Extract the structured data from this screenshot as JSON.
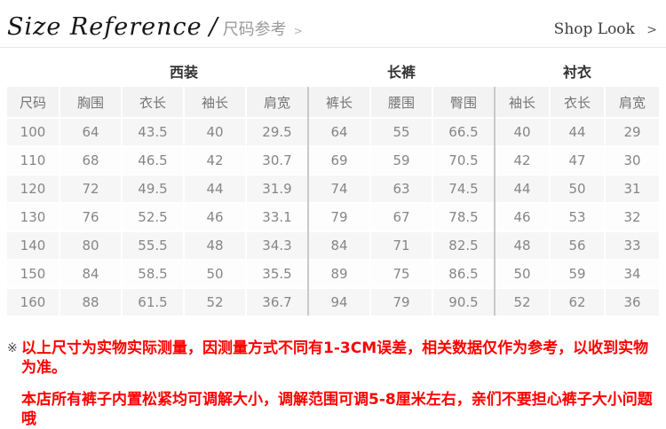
{
  "header": {
    "title_en": "Size Reference",
    "title_slash": "/",
    "title_cn": "尺码参考",
    "title_chevron": ">",
    "shop_look_label": "Shop Look",
    "shop_look_chevron": ">"
  },
  "size_table": {
    "groups": [
      {
        "label": "西装"
      },
      {
        "label": "长裤"
      },
      {
        "label": "衬衣"
      }
    ],
    "columns": [
      "尺码",
      "胸围",
      "衣长",
      "袖长",
      "肩宽",
      "裤长",
      "腰围",
      "臀围",
      "袖长",
      "衣长",
      "肩宽"
    ],
    "rows": [
      [
        "100",
        "64",
        "43.5",
        "40",
        "29.5",
        "64",
        "55",
        "66.5",
        "40",
        "44",
        "29"
      ],
      [
        "110",
        "68",
        "46.5",
        "42",
        "30.7",
        "69",
        "59",
        "70.5",
        "42",
        "47",
        "30"
      ],
      [
        "120",
        "72",
        "49.5",
        "44",
        "31.9",
        "74",
        "63",
        "74.5",
        "44",
        "50",
        "31"
      ],
      [
        "130",
        "76",
        "52.5",
        "46",
        "33.1",
        "79",
        "67",
        "78.5",
        "46",
        "53",
        "32"
      ],
      [
        "140",
        "80",
        "55.5",
        "48",
        "34.3",
        "84",
        "71",
        "82.5",
        "48",
        "56",
        "33"
      ],
      [
        "150",
        "84",
        "58.5",
        "50",
        "35.5",
        "89",
        "75",
        "86.5",
        "50",
        "59",
        "34"
      ],
      [
        "160",
        "88",
        "61.5",
        "52",
        "36.7",
        "94",
        "79",
        "90.5",
        "52",
        "62",
        "36"
      ]
    ]
  },
  "notes": {
    "marker": "※",
    "line1": "以上尺寸为实物实际测量，因测量方式不同有1-3CM误差，相关数据仅作为参考，以收到实物为准。",
    "line2": "本店所有裤子内置松紧均可调解大小，调解范围可调5-8厘米左右，亲们不要担心裤子大小问题哦"
  },
  "colors": {
    "note_red": "#ff0000",
    "header_cell_bg": "#f3f3f3",
    "row_alt_bg": "#f6f6f6",
    "group_separator": "#c9c9c9",
    "title_divider_line": "#e7e7e7"
  }
}
